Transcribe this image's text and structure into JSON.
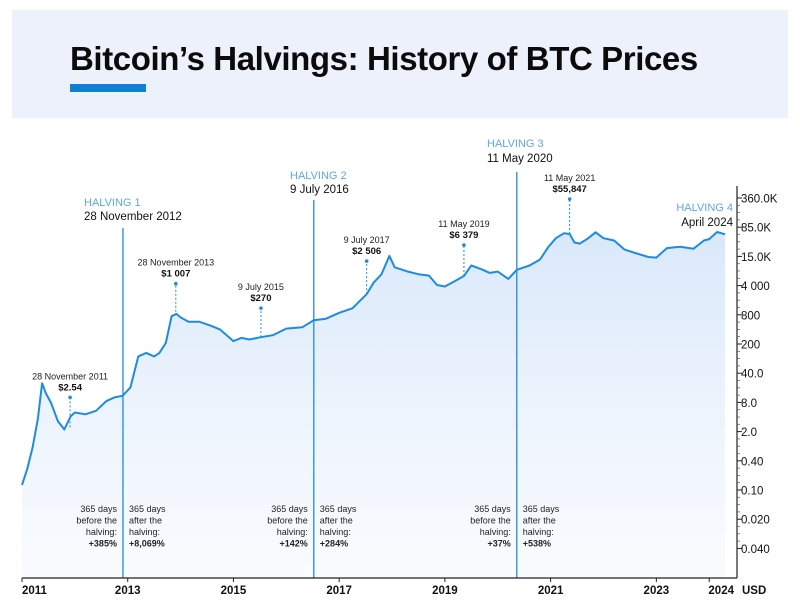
{
  "title": "Bitcoin’s Halvings: History of BTC Prices",
  "colors": {
    "accent": "#0f7fd3",
    "line": "#1f8be0",
    "halving_text": "#5fa8e3",
    "area_top": "#d7e7fa",
    "area_bottom": "#f6f9fe",
    "header_band": "#edf1fb"
  },
  "chart_data": {
    "type": "area",
    "title": "Bitcoin’s Halvings: History of BTC Prices",
    "x_tick_labels": [
      "2011",
      "2013",
      "2015",
      "2017",
      "2019",
      "2021",
      "2023",
      "2024"
    ],
    "x_ticks": [
      2011,
      2013,
      2015,
      2017,
      2019,
      2021,
      2023,
      2024
    ],
    "y_unit_label": "USD",
    "y_tick_labels": [
      "360.0K",
      "85.0K",
      "15.0K",
      "4 000",
      "800",
      "200",
      "40.0",
      "8.0",
      "2.0",
      "0.40",
      "0.10",
      "0.020",
      "0.040"
    ],
    "y_scale": "log",
    "series": [
      {
        "values": [
          [
            2011.0,
            0.13
          ],
          [
            2011.1,
            0.3
          ],
          [
            2011.2,
            0.9
          ],
          [
            2011.3,
            4.0
          ],
          [
            2011.38,
            25
          ],
          [
            2011.45,
            15
          ],
          [
            2011.55,
            9
          ],
          [
            2011.68,
            3.5
          ],
          [
            2011.8,
            2.3
          ],
          [
            2011.92,
            4.5
          ],
          [
            2012.0,
            5.5
          ],
          [
            2012.2,
            5.0
          ],
          [
            2012.4,
            6.0
          ],
          [
            2012.6,
            10
          ],
          [
            2012.75,
            12
          ],
          [
            2012.9,
            13
          ],
          [
            2013.05,
            20
          ],
          [
            2013.2,
            100
          ],
          [
            2013.35,
            120
          ],
          [
            2013.5,
            100
          ],
          [
            2013.6,
            120
          ],
          [
            2013.72,
            200
          ],
          [
            2013.83,
            800
          ],
          [
            2013.92,
            900
          ],
          [
            2014.0,
            750
          ],
          [
            2014.15,
            600
          ],
          [
            2014.35,
            600
          ],
          [
            2014.55,
            500
          ],
          [
            2014.75,
            400
          ],
          [
            2015.0,
            220
          ],
          [
            2015.15,
            260
          ],
          [
            2015.3,
            240
          ],
          [
            2015.52,
            270
          ],
          [
            2015.75,
            300
          ],
          [
            2016.0,
            420
          ],
          [
            2016.3,
            450
          ],
          [
            2016.52,
            650
          ],
          [
            2016.75,
            700
          ],
          [
            2017.0,
            950
          ],
          [
            2017.25,
            1200
          ],
          [
            2017.52,
            2506
          ],
          [
            2017.65,
            4500
          ],
          [
            2017.8,
            7000
          ],
          [
            2017.95,
            18000
          ],
          [
            2018.05,
            10000
          ],
          [
            2018.3,
            8000
          ],
          [
            2018.5,
            7000
          ],
          [
            2018.7,
            6500
          ],
          [
            2018.85,
            4000
          ],
          [
            2019.0,
            3700
          ],
          [
            2019.2,
            5000
          ],
          [
            2019.36,
            6379
          ],
          [
            2019.5,
            11000
          ],
          [
            2019.7,
            9000
          ],
          [
            2019.85,
            7500
          ],
          [
            2020.0,
            8000
          ],
          [
            2020.2,
            5500
          ],
          [
            2020.36,
            8800
          ],
          [
            2020.6,
            11000
          ],
          [
            2020.8,
            15000
          ],
          [
            2020.95,
            28000
          ],
          [
            2021.1,
            45000
          ],
          [
            2021.25,
            58000
          ],
          [
            2021.36,
            55847
          ],
          [
            2021.45,
            36000
          ],
          [
            2021.55,
            34000
          ],
          [
            2021.7,
            44000
          ],
          [
            2021.85,
            61000
          ],
          [
            2022.0,
            45000
          ],
          [
            2022.2,
            40000
          ],
          [
            2022.4,
            25000
          ],
          [
            2022.6,
            21000
          ],
          [
            2022.85,
            17000
          ],
          [
            2023.0,
            16500
          ],
          [
            2023.2,
            27000
          ],
          [
            2023.45,
            29000
          ],
          [
            2023.7,
            26000
          ],
          [
            2023.9,
            40000
          ],
          [
            2024.0,
            43000
          ],
          [
            2024.15,
            62000
          ],
          [
            2024.3,
            55000
          ]
        ]
      }
    ],
    "halvings": [
      {
        "label": "HALVING 1",
        "date": "28 November 2012",
        "x": 2012.91
      },
      {
        "label": "HALVING 2",
        "date": "9 July 2016",
        "x": 2016.52
      },
      {
        "label": "HALVING 3",
        "date": "11 May 2020",
        "x": 2020.36
      },
      {
        "label": "HALVING 4",
        "date": "April 2024",
        "x": 2024.3
      }
    ],
    "annotations": [
      {
        "date": "28 November 2011",
        "price": "$2.54",
        "x": 2011.91,
        "y": 2.54
      },
      {
        "date": "28 November 2013",
        "price": "$1 007",
        "x": 2013.91,
        "y": 1007
      },
      {
        "date": "9 July 2015",
        "price": "$270",
        "x": 2015.52,
        "y": 270
      },
      {
        "date": "9 July 2017",
        "price": "$2 506",
        "x": 2017.52,
        "y": 2506
      },
      {
        "date": "11 May 2019",
        "price": "$6 379",
        "x": 2019.36,
        "y": 6379
      },
      {
        "date": "11 May 2021",
        "price": "$55,847",
        "x": 2021.36,
        "y": 55847
      }
    ],
    "period_notes": [
      {
        "lines": [
          "365 days",
          "before the",
          "halving:",
          "+385%"
        ],
        "align": "right",
        "halving": 1
      },
      {
        "lines": [
          "365 days",
          "after the",
          "halving:",
          "+8,069%"
        ],
        "align": "left",
        "halving": 1
      },
      {
        "lines": [
          "365 days",
          "before the",
          "halving:",
          "+142%"
        ],
        "align": "right",
        "halving": 2
      },
      {
        "lines": [
          "365 days",
          "after the",
          "halving:",
          "+284%"
        ],
        "align": "left",
        "halving": 2
      },
      {
        "lines": [
          "365 days",
          "before the",
          "halving:",
          "+37%"
        ],
        "align": "right",
        "halving": 3
      },
      {
        "lines": [
          "365 days",
          "after the",
          "halving:",
          "+538%"
        ],
        "align": "left",
        "halving": 3
      }
    ],
    "grid": false
  }
}
